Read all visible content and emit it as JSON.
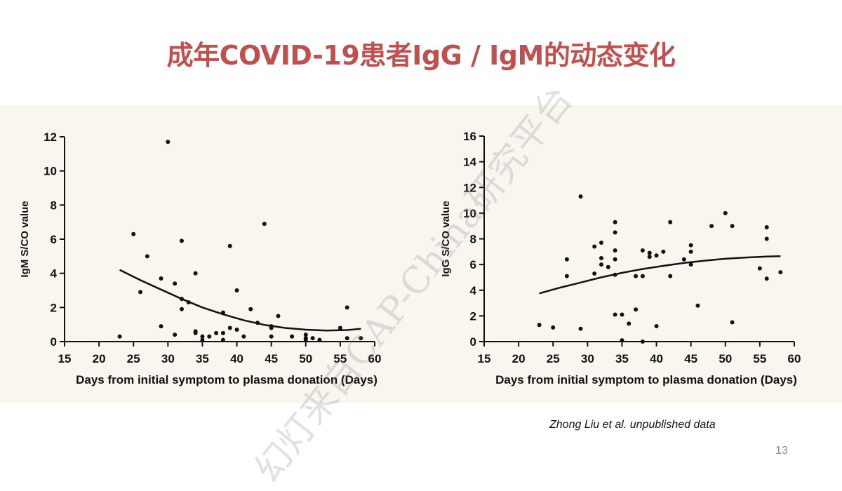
{
  "slide": {
    "title": "成年COVID-19患者IgG / IgM的动态变化",
    "credit": "Zhong Liu et al. unpublished data",
    "page_number": "13",
    "watermark": "幻灯来自CAP-China研究平台"
  },
  "colors": {
    "title": "#c0504d",
    "band": "#f8f6ef",
    "marks": "#111111"
  },
  "chart_data": [
    {
      "type": "scatter",
      "xlabel": "Days from initial symptom to plasma donation (Days)",
      "ylabel": "IgM S/CO value",
      "xlim": [
        15,
        60
      ],
      "ylim": [
        0,
        12
      ],
      "xticks": [
        15,
        20,
        25,
        30,
        35,
        40,
        45,
        50,
        55,
        60
      ],
      "yticks": [
        0,
        2,
        4,
        6,
        8,
        10,
        12
      ],
      "grid": false,
      "points": [
        [
          23,
          0.3
        ],
        [
          25,
          6.3
        ],
        [
          26,
          2.9
        ],
        [
          27,
          5.0
        ],
        [
          29,
          0.9
        ],
        [
          29,
          3.7
        ],
        [
          30,
          11.7
        ],
        [
          31,
          3.4
        ],
        [
          31,
          0.4
        ],
        [
          32,
          5.9
        ],
        [
          32,
          2.5
        ],
        [
          32,
          1.9
        ],
        [
          33,
          2.3
        ],
        [
          34,
          4.0
        ],
        [
          34,
          0.6
        ],
        [
          34,
          0.5
        ],
        [
          35,
          0.3
        ],
        [
          35,
          0.1
        ],
        [
          36,
          0.3
        ],
        [
          37,
          0.5
        ],
        [
          38,
          1.7
        ],
        [
          38,
          0.5
        ],
        [
          38,
          0.1
        ],
        [
          39,
          5.6
        ],
        [
          39,
          0.8
        ],
        [
          40,
          3.0
        ],
        [
          40,
          0.7
        ],
        [
          41,
          0.3
        ],
        [
          42,
          1.9
        ],
        [
          43,
          1.1
        ],
        [
          44,
          6.9
        ],
        [
          45,
          0.9
        ],
        [
          45,
          0.8
        ],
        [
          45,
          0.3
        ],
        [
          46,
          1.5
        ],
        [
          48,
          0.3
        ],
        [
          50,
          0.4
        ],
        [
          50,
          0.2
        ],
        [
          50,
          0.1
        ],
        [
          51,
          0.2
        ],
        [
          52,
          0.1
        ],
        [
          55,
          0.8
        ],
        [
          56,
          2.0
        ],
        [
          56,
          0.2
        ],
        [
          58,
          0.2
        ]
      ],
      "fit_curve": [
        [
          23,
          4.2
        ],
        [
          26,
          3.6
        ],
        [
          29,
          3.05
        ],
        [
          32,
          2.5
        ],
        [
          35,
          2.0
        ],
        [
          38,
          1.6
        ],
        [
          41,
          1.25
        ],
        [
          44,
          0.98
        ],
        [
          47,
          0.8
        ],
        [
          50,
          0.7
        ],
        [
          53,
          0.65
        ],
        [
          56,
          0.68
        ],
        [
          58,
          0.75
        ]
      ]
    },
    {
      "type": "scatter",
      "xlabel": "Days from initial symptom to plasma donation (Days)",
      "ylabel": "IgG S/CO value",
      "xlim": [
        15,
        60
      ],
      "ylim": [
        0,
        16
      ],
      "xticks": [
        15,
        20,
        25,
        30,
        35,
        40,
        45,
        50,
        55,
        60
      ],
      "yticks": [
        0,
        2,
        4,
        6,
        8,
        10,
        12,
        14,
        16
      ],
      "grid": false,
      "points": [
        [
          23,
          1.3
        ],
        [
          25,
          1.1
        ],
        [
          27,
          6.4
        ],
        [
          27,
          5.1
        ],
        [
          29,
          11.3
        ],
        [
          29,
          1.0
        ],
        [
          31,
          7.4
        ],
        [
          31,
          5.3
        ],
        [
          32,
          7.7
        ],
        [
          32,
          6.5
        ],
        [
          32,
          6.0
        ],
        [
          33,
          5.8
        ],
        [
          34,
          9.3
        ],
        [
          34,
          8.5
        ],
        [
          34,
          7.1
        ],
        [
          34,
          6.4
        ],
        [
          34,
          5.2
        ],
        [
          34,
          2.1
        ],
        [
          35,
          2.1
        ],
        [
          35,
          0.1
        ],
        [
          36,
          1.4
        ],
        [
          37,
          5.1
        ],
        [
          37,
          2.5
        ],
        [
          38,
          7.1
        ],
        [
          38,
          5.1
        ],
        [
          38,
          0.0
        ],
        [
          39,
          6.9
        ],
        [
          39,
          6.6
        ],
        [
          40,
          6.7
        ],
        [
          40,
          1.2
        ],
        [
          41,
          7.0
        ],
        [
          42,
          9.3
        ],
        [
          42,
          5.1
        ],
        [
          44,
          6.4
        ],
        [
          45,
          7.5
        ],
        [
          45,
          7.0
        ],
        [
          45,
          6.0
        ],
        [
          46,
          2.8
        ],
        [
          48,
          9.0
        ],
        [
          50,
          10.0
        ],
        [
          51,
          9.0
        ],
        [
          51,
          1.5
        ],
        [
          55,
          5.7
        ],
        [
          56,
          8.9
        ],
        [
          56,
          8.0
        ],
        [
          56,
          4.9
        ],
        [
          58,
          5.4
        ]
      ],
      "fit_curve": [
        [
          23,
          3.75
        ],
        [
          26,
          4.2
        ],
        [
          29,
          4.6
        ],
        [
          32,
          5.0
        ],
        [
          35,
          5.35
        ],
        [
          38,
          5.65
        ],
        [
          41,
          5.9
        ],
        [
          44,
          6.12
        ],
        [
          47,
          6.3
        ],
        [
          50,
          6.45
        ],
        [
          53,
          6.55
        ],
        [
          56,
          6.62
        ],
        [
          58,
          6.65
        ]
      ]
    }
  ]
}
